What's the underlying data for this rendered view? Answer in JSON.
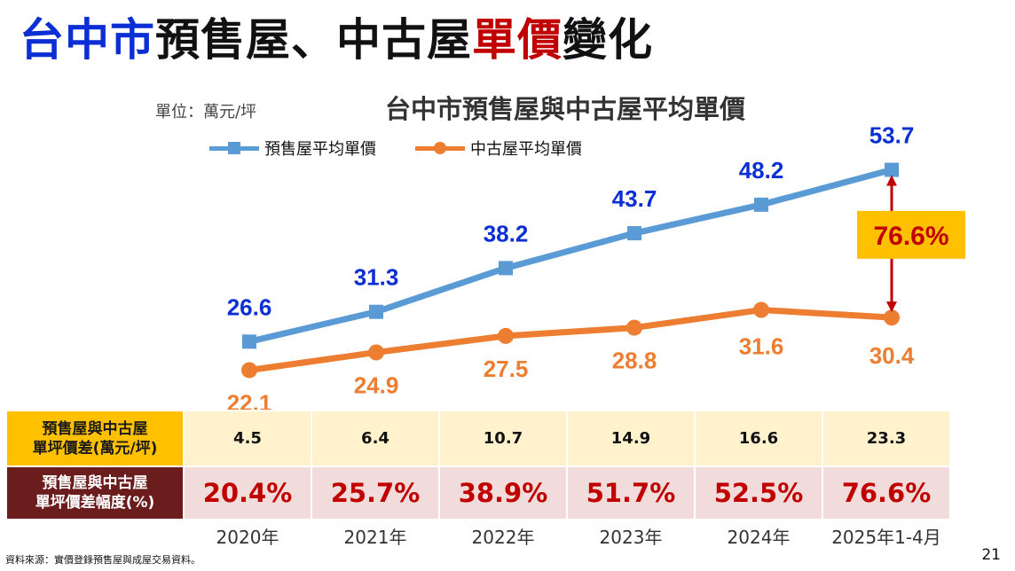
{
  "page": {
    "title_parts": [
      {
        "text": "台中市",
        "color": "#0b2fd4"
      },
      {
        "text": "預售屋、中古屋",
        "color": "#111111"
      },
      {
        "text": "單價",
        "color": "#c00000"
      },
      {
        "text": "變化",
        "color": "#111111"
      }
    ],
    "unit_label": "單位：萬元/坪",
    "source": "資料來源：實價登錄預售屋與成屋交易資料。",
    "page_number": "21"
  },
  "chart_data": {
    "type": "line",
    "title": "台中市預售屋與中古屋平均單價",
    "categories": [
      "2020年",
      "2021年",
      "2022年",
      "2023年",
      "2024年",
      "2025年1-4月"
    ],
    "series": [
      {
        "name": "預售屋平均單價",
        "values": [
          26.6,
          31.3,
          38.2,
          43.7,
          48.2,
          53.7
        ],
        "color": "#5b9bd5",
        "label_color": "#0b2fd4",
        "marker": "square"
      },
      {
        "name": "中古屋平均單價",
        "values": [
          22.1,
          24.9,
          27.5,
          28.8,
          31.6,
          30.4
        ],
        "color": "#ed7d31",
        "label_color": "#ed7d31",
        "marker": "circle"
      }
    ],
    "legend_position": "top-left",
    "grid": false,
    "annotation": {
      "text": "76.6%",
      "between_category": "2025年1-4月",
      "box_color": "#ffc000",
      "arrow_color": "#c00000"
    }
  },
  "table": {
    "row1_label": [
      "預售屋與中古屋",
      "單坪價差(萬元/坪)"
    ],
    "row1_values": [
      "4.5",
      "6.4",
      "10.7",
      "14.9",
      "16.6",
      "23.3"
    ],
    "row2_label": [
      "預售屋與中古屋",
      "單坪價差幅度(%)"
    ],
    "row2_values": [
      "20.4%",
      "25.7%",
      "38.9%",
      "51.7%",
      "52.5%",
      "76.6%"
    ]
  }
}
